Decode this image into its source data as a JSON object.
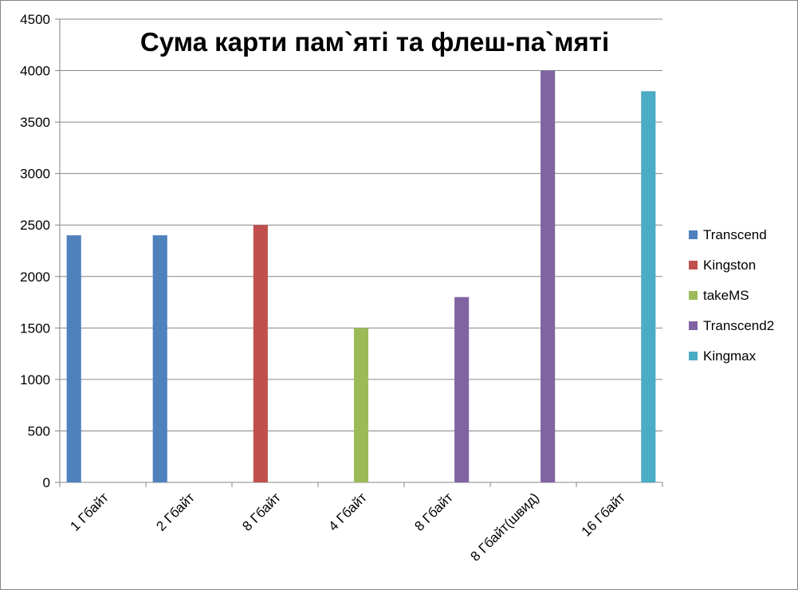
{
  "chart_data": {
    "type": "bar",
    "title": "Сума карти пам`яті та флеш-па`мяті",
    "xlabel": "",
    "ylabel": "",
    "ylim": [
      0,
      4500
    ],
    "yticks": [
      0,
      500,
      1000,
      1500,
      2000,
      2500,
      3000,
      3500,
      4000,
      4500
    ],
    "grid": true,
    "legend_position": "right",
    "categories": [
      "1 Гбайт",
      "2 Гбайт",
      "8 Гбайт",
      "4 Гбайт",
      "8 Гбайт",
      "8 Гбайт(швид)",
      "16 Гбайт"
    ],
    "series": [
      {
        "name": "Transcend",
        "color": "#4f81bd",
        "values": [
          2400,
          2400,
          null,
          null,
          null,
          null,
          null
        ]
      },
      {
        "name": "Kingston",
        "color": "#c0504d",
        "values": [
          null,
          null,
          2500,
          null,
          null,
          null,
          null
        ]
      },
      {
        "name": "takeMS",
        "color": "#9bbb59",
        "values": [
          null,
          null,
          null,
          1500,
          null,
          null,
          null
        ]
      },
      {
        "name": "Transcend2",
        "color": "#8064a2",
        "values": [
          null,
          null,
          null,
          null,
          1800,
          4000,
          null
        ]
      },
      {
        "name": "Kingmax",
        "color": "#4bacc6",
        "values": [
          null,
          null,
          null,
          null,
          null,
          null,
          3800
        ]
      }
    ]
  }
}
